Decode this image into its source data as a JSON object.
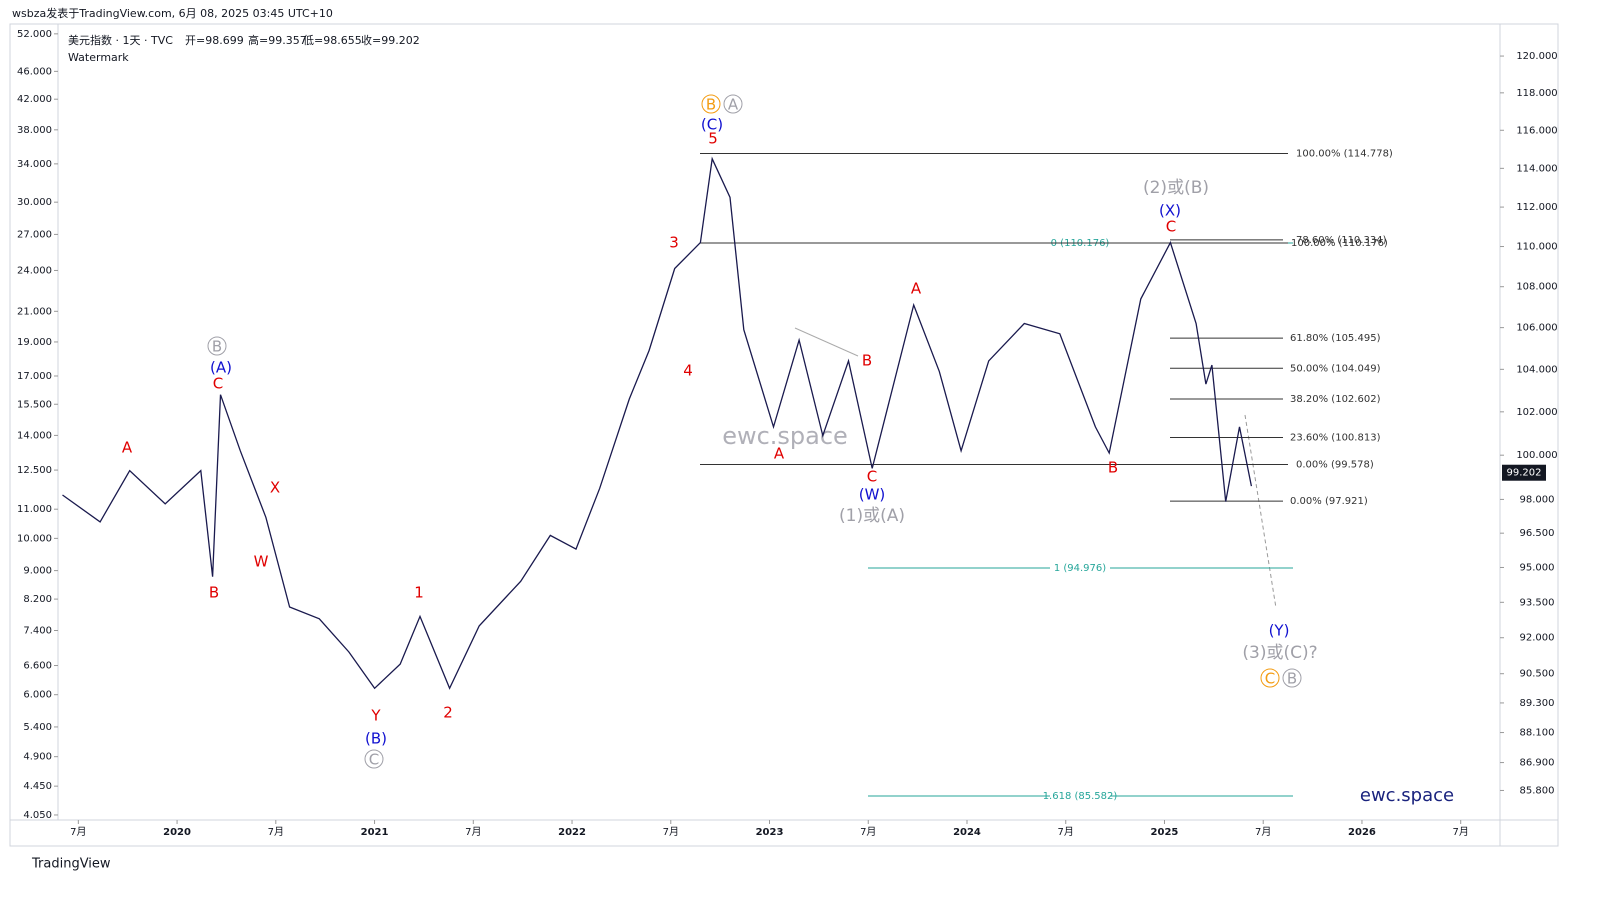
{
  "header": "wsbza发表于TradingView.com, 6月 08, 2025 03:45 UTC+10",
  "legend": {
    "symbol": "美元指数 · 1天 · TVC",
    "open": "开=98.699",
    "high": "高=99.357",
    "low": "低=98.655",
    "close": "收=99.202",
    "watermark": "Watermark"
  },
  "watermarks": [
    "ewc.space",
    "ewc.space"
  ],
  "footer": "TradingView",
  "waves": [
    "B",
    "A",
    "(C)",
    "5",
    "3",
    "4",
    "(2)或(B)",
    "(X)",
    "C",
    "A",
    "B",
    "A",
    "C",
    "(W)",
    "(1)或(A)",
    "B",
    "(Y)",
    "(3)或(C)?",
    "C",
    "B",
    "A",
    "B",
    "(A)",
    "C",
    "X",
    "B",
    "W",
    "1",
    "Y",
    "2",
    "(B)",
    "C"
  ],
  "fibs": [
    {
      "label": "100.00% (114.778)",
      "value": 114.778,
      "color": "#333333"
    },
    {
      "label": "0 (110.176)",
      "value": 110.176,
      "color": "#26a69a"
    },
    {
      "label": "78.60% (110.334)",
      "value": 110.334,
      "color": "#333333"
    },
    {
      "label": "100.00% (110.176)",
      "value": 110.176,
      "color": "#333333"
    },
    {
      "label": "61.80% (105.495)",
      "value": 105.495,
      "color": "#333333"
    },
    {
      "label": "50.00% (104.049)",
      "value": 104.049,
      "color": "#333333"
    },
    {
      "label": "38.20% (102.602)",
      "value": 102.602,
      "color": "#333333"
    },
    {
      "label": "23.60% (100.813)",
      "value": 100.813,
      "color": "#333333"
    },
    {
      "label": "0.00% (99.578)",
      "value": 99.578,
      "color": "#333333"
    },
    {
      "label": "0.00% (97.921)",
      "value": 97.921,
      "color": "#333333"
    },
    {
      "label": "1 (94.976)",
      "value": 94.976,
      "color": "#26a69a"
    },
    {
      "label": "1.618 (85.582)",
      "value": 85.582,
      "color": "#26a69a"
    }
  ],
  "chart_data": {
    "type": "line",
    "log_scale": true,
    "color": "#1a1a4e",
    "x": [
      2019.42,
      2019.61,
      2019.76,
      2019.94,
      2020.12,
      2020.18,
      2020.22,
      2020.32,
      2020.45,
      2020.57,
      2020.72,
      2020.87,
      2021.0,
      2021.13,
      2021.23,
      2021.38,
      2021.53,
      2021.74,
      2021.89,
      2022.02,
      2022.14,
      2022.29,
      2022.39,
      2022.52,
      2022.65,
      2022.71,
      2022.8,
      2022.87,
      2023.02,
      2023.15,
      2023.27,
      2023.4,
      2023.52,
      2023.73,
      2023.86,
      2023.97,
      2024.11,
      2024.29,
      2024.47,
      2024.65,
      2024.72,
      2024.88,
      2025.03,
      2025.16,
      2025.21,
      2025.24,
      2025.31,
      2025.38,
      2025.44
    ],
    "values": [
      98.2,
      97.0,
      99.3,
      97.8,
      99.3,
      94.6,
      102.8,
      100.2,
      97.2,
      93.3,
      92.8,
      91.4,
      89.9,
      90.9,
      92.9,
      89.9,
      92.5,
      94.4,
      96.4,
      95.8,
      98.5,
      102.6,
      104.9,
      108.9,
      110.2,
      114.5,
      112.5,
      105.9,
      101.3,
      105.4,
      100.9,
      104.4,
      99.4,
      107.1,
      103.9,
      100.2,
      104.4,
      106.2,
      105.7,
      101.3,
      100.1,
      107.4,
      110.2,
      106.2,
      103.3,
      104.2,
      97.9,
      101.3,
      98.6
    ],
    "last_price": 99.202,
    "xlim": [
      2019.154,
      2026.699
    ],
    "xticks": [
      {
        "value": 2019.5,
        "label": "7月"
      },
      2020,
      {
        "value": 2020.5,
        "label": "7月"
      },
      2021,
      {
        "value": 2021.5,
        "label": "7月"
      },
      2022,
      {
        "value": 2022.5,
        "label": "7月"
      },
      2023,
      {
        "value": 2023.5,
        "label": "7月"
      },
      2024,
      {
        "value": 2024.5,
        "label": "7月"
      },
      2025,
      {
        "value": 2025.5,
        "label": "7月"
      },
      2026,
      {
        "value": 2026.5,
        "label": "7月"
      }
    ],
    "ylim": [
      84.65,
      121.77
    ],
    "yticks": [
      {
        "value": 120,
        "label": "120.000"
      },
      {
        "value": 118,
        "label": "118.000"
      },
      {
        "value": 116,
        "label": "116.000"
      },
      {
        "value": 114,
        "label": "114.000"
      },
      {
        "value": 112,
        "label": "112.000"
      },
      {
        "value": 110,
        "label": "110.000"
      },
      {
        "value": 108,
        "label": "108.000"
      },
      {
        "value": 106,
        "label": "106.000"
      },
      {
        "value": 104,
        "label": "104.000"
      },
      {
        "value": 102,
        "label": "102.000"
      },
      {
        "value": 100,
        "label": "100.000"
      },
      {
        "value": 98,
        "label": "98.000"
      },
      {
        "value": 96.5,
        "label": "96.500"
      },
      {
        "value": 95,
        "label": "95.000"
      },
      {
        "value": 93.5,
        "label": "93.500"
      },
      {
        "value": 92,
        "label": "92.000"
      },
      {
        "value": 90.5,
        "label": "90.500"
      },
      {
        "value": 89.3,
        "label": "89.300"
      },
      {
        "value": 88.1,
        "label": "88.100"
      },
      {
        "value": 86.9,
        "label": "86.900"
      },
      {
        "value": 85.8,
        "label": "85.800"
      }
    ],
    "y2lim": [
      3.984,
      53.7
    ],
    "y2ticks": [
      {
        "value": 52,
        "label": "52.000"
      },
      {
        "value": 46,
        "label": "46.000"
      },
      {
        "value": 42,
        "label": "42.000"
      },
      {
        "value": 38,
        "label": "38.000"
      },
      {
        "value": 34,
        "label": "34.000"
      },
      {
        "value": 30,
        "label": "30.000"
      },
      {
        "value": 27,
        "label": "27.000"
      },
      {
        "value": 24,
        "label": "24.000"
      },
      {
        "value": 21,
        "label": "21.000"
      },
      {
        "value": 19,
        "label": "19.000"
      },
      {
        "value": 17,
        "label": "17.000"
      },
      {
        "value": 15.5,
        "label": "15.500"
      },
      {
        "value": 14,
        "label": "14.000"
      },
      {
        "value": 12.5,
        "label": "12.500"
      },
      {
        "value": 11,
        "label": "11.000"
      },
      {
        "value": 10,
        "label": "10.000"
      },
      {
        "value": 9,
        "label": "9.000"
      },
      {
        "value": 8.2,
        "label": "8.200"
      },
      {
        "value": 7.4,
        "label": "7.400"
      },
      {
        "value": 6.6,
        "label": "6.600"
      },
      {
        "value": 6,
        "label": "6.000"
      },
      {
        "value": 5.4,
        "label": "5.400"
      },
      {
        "value": 4.9,
        "label": "4.900"
      },
      {
        "value": 4.45,
        "label": "4.450"
      },
      {
        "value": 4.05,
        "label": "4.050"
      }
    ]
  }
}
